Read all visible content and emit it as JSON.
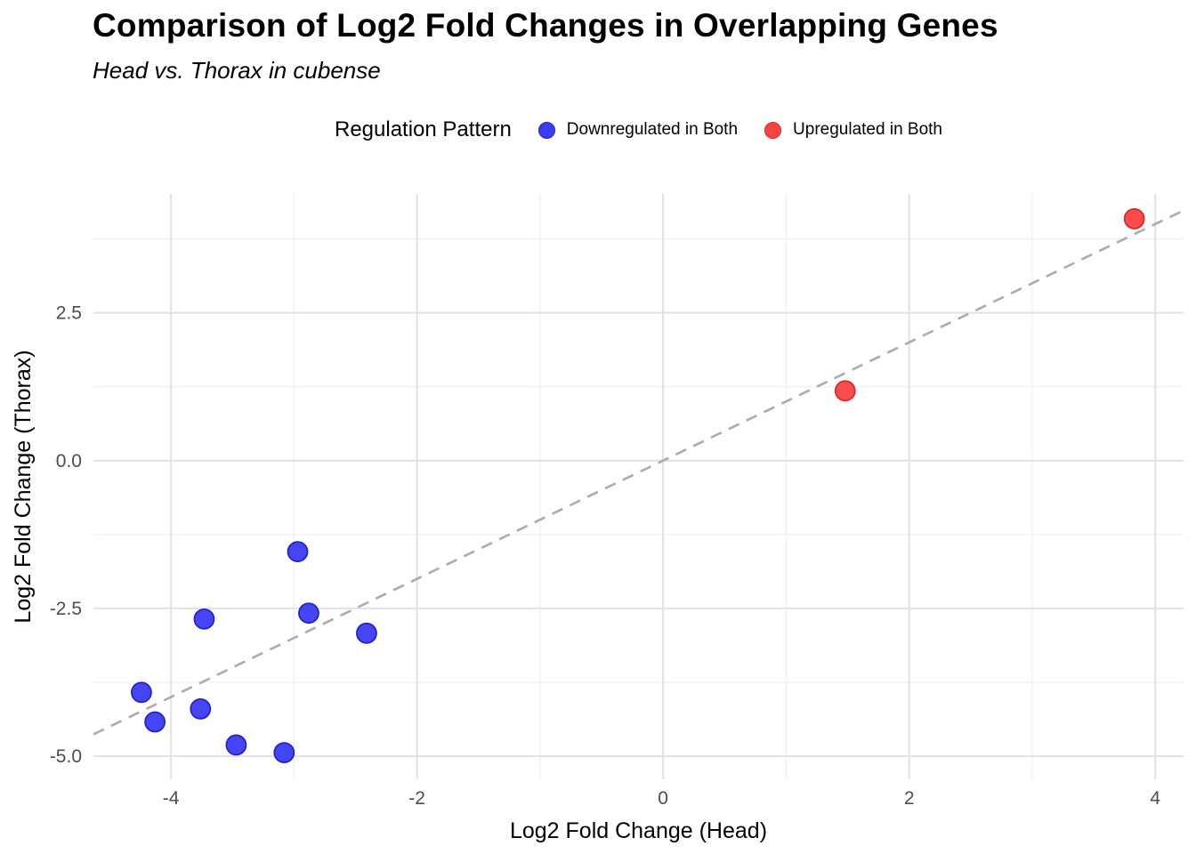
{
  "chart_data": {
    "type": "scatter",
    "title": "Comparison of Log2 Fold Changes in Overlapping Genes",
    "subtitle": "Head vs. Thorax in cubense",
    "xlabel": "Log2 Fold Change (Head)",
    "ylabel": "Log2 Fold Change (Thorax)",
    "legend_title": "Regulation Pattern",
    "legend_position": "top",
    "grid": true,
    "xlim": [
      -4.63,
      4.23
    ],
    "ylim": [
      -5.39,
      4.51
    ],
    "x_ticks": {
      "values": [
        -4,
        -2,
        0,
        2,
        4
      ],
      "labels": [
        "-4",
        "-2",
        "0",
        "2",
        "4"
      ],
      "minor": [
        -3,
        -1,
        1,
        3
      ]
    },
    "y_ticks": {
      "values": [
        -5.0,
        -2.5,
        0.0,
        2.5
      ],
      "labels": [
        "-5.0",
        "-2.5",
        "0.0",
        "2.5"
      ],
      "minor": [
        -3.75,
        -1.25,
        1.25,
        3.75
      ]
    },
    "reference_line": {
      "kind": "identity y=x",
      "dashed": true,
      "color": "#ABABAB"
    },
    "series": [
      {
        "name": "Downregulated in Both",
        "fill": "#3B3BF2",
        "stroke": "#2222CC",
        "points": [
          [
            -2.97,
            -1.54
          ],
          [
            -2.88,
            -2.58
          ],
          [
            -2.41,
            -2.92
          ],
          [
            -3.73,
            -2.68
          ],
          [
            -4.24,
            -3.92
          ],
          [
            -4.13,
            -4.42
          ],
          [
            -3.76,
            -4.2
          ],
          [
            -3.47,
            -4.81
          ],
          [
            -3.08,
            -4.94
          ]
        ]
      },
      {
        "name": "Upregulated in Both",
        "fill": "#FA4242",
        "stroke": "#D62B2B",
        "points": [
          [
            1.48,
            1.18
          ],
          [
            3.83,
            4.09
          ]
        ]
      }
    ],
    "style": {
      "grid_major_color": "#E2E2E2",
      "grid_minor_color": "#EFEFEF",
      "tick_label_color": "#4D4D4D",
      "axis_title_color": "#000000",
      "point_radius": 11
    }
  }
}
